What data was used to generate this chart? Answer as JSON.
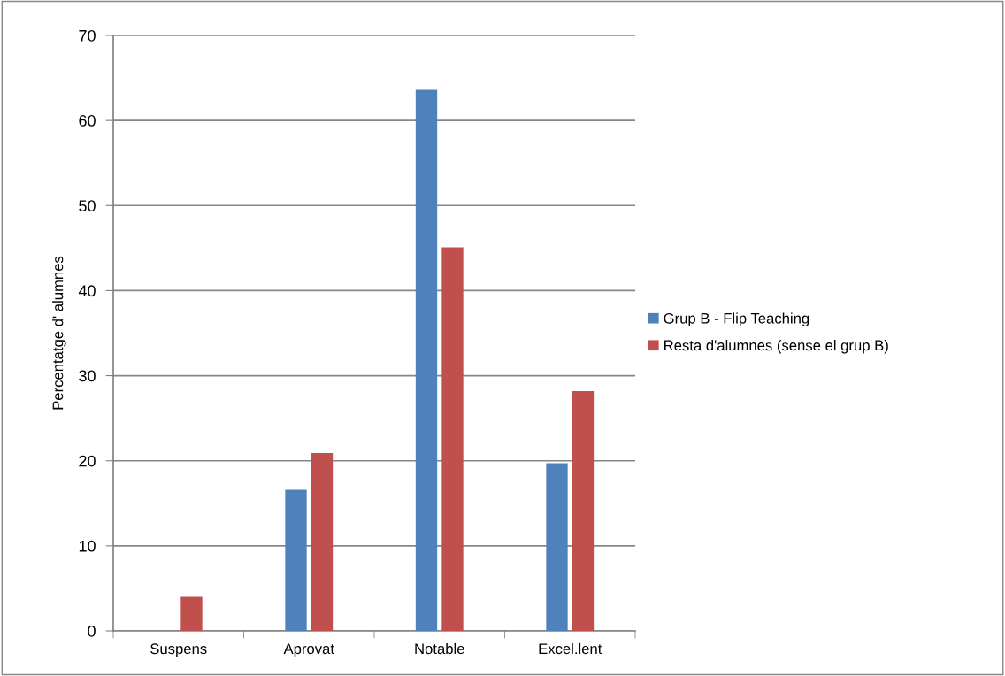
{
  "chart_data": {
    "type": "bar",
    "ylabel": "Percentatge d' alumnes",
    "categories": [
      "Suspens",
      "Aprovat",
      "Notable",
      "Excel.lent"
    ],
    "series": [
      {
        "name": "Grup B - Flip Teaching",
        "color": "#4f81bd",
        "values": [
          0,
          16.6,
          63.6,
          19.7
        ]
      },
      {
        "name": "Resta d'alumnes (sense el grup B)",
        "color": "#c0504d",
        "values": [
          4.0,
          20.9,
          45.1,
          28.2
        ]
      }
    ],
    "ylim": [
      0,
      70
    ],
    "yticks": [
      0,
      10,
      20,
      30,
      40,
      50,
      60,
      70
    ],
    "grid": "y",
    "legend": "right"
  }
}
